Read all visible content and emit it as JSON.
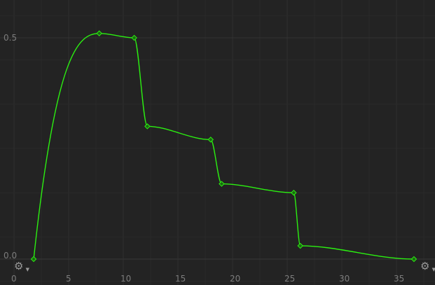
{
  "curve_editor": {
    "y_axis_labels": [
      "0.5",
      "0.0"
    ],
    "x_axis_labels": [
      "0",
      "5",
      "10",
      "15",
      "20",
      "25",
      "30",
      "35"
    ],
    "curve_color": "#2bef11",
    "background_color": "#232323",
    "grid_color": "#2c2c2c",
    "left_settings_icon": "gear-dropdown-icon",
    "right_settings_icon": "gear-dropdown-icon"
  },
  "chart_data": {
    "type": "line",
    "x_tick_values": [
      0,
      5,
      10,
      15,
      20,
      25,
      30,
      35
    ],
    "y_tick_values": [
      0,
      0.5
    ],
    "series": [
      {
        "keyframes": [
          {
            "x": 1.8,
            "y": 0.0
          },
          {
            "x": 7.8,
            "y": 0.51
          },
          {
            "x": 11.0,
            "y": 0.5
          },
          {
            "x": 12.2,
            "y": 0.3
          },
          {
            "x": 18.0,
            "y": 0.27
          },
          {
            "x": 19.0,
            "y": 0.17
          },
          {
            "x": 25.6,
            "y": 0.15
          },
          {
            "x": 26.2,
            "y": 0.03
          },
          {
            "x": 36.6,
            "y": 0.0
          }
        ]
      }
    ]
  }
}
